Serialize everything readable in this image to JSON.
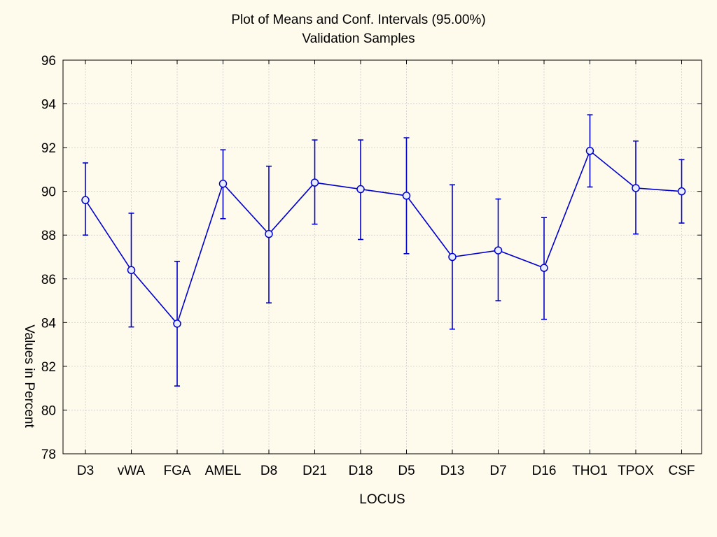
{
  "chart_data": {
    "type": "line",
    "title": "Plot of Means and Conf. Intervals (95.00%)",
    "subtitle": "Validation Samples",
    "xlabel": "LOCUS",
    "ylabel": "Values in Percent",
    "ylim": [
      78,
      96
    ],
    "yticks": [
      78,
      80,
      82,
      84,
      86,
      88,
      90,
      92,
      94,
      96
    ],
    "grid": true,
    "categories": [
      "D3",
      "vWA",
      "FGA",
      "AMEL",
      "D8",
      "D21",
      "D18",
      "D5",
      "D13",
      "D7",
      "D16",
      "THO1",
      "TPOX",
      "CSF"
    ],
    "series": [
      {
        "values": [
          89.6,
          86.4,
          83.95,
          90.35,
          88.05,
          90.4,
          90.1,
          89.8,
          87.0,
          87.3,
          86.5,
          91.85,
          90.15,
          90.0
        ],
        "lower": [
          88.0,
          83.8,
          81.1,
          88.75,
          84.9,
          88.5,
          87.8,
          87.15,
          83.7,
          85.0,
          84.15,
          90.2,
          88.05,
          88.55
        ],
        "upper": [
          91.3,
          89.0,
          86.8,
          91.9,
          91.15,
          92.35,
          92.35,
          92.45,
          90.3,
          89.65,
          88.8,
          93.5,
          92.3,
          91.45
        ]
      }
    ],
    "colors": {
      "series": "#0000cc",
      "marker_fill": "#e8ecff",
      "background": "#fefaec",
      "grid": "#cccccc"
    }
  }
}
